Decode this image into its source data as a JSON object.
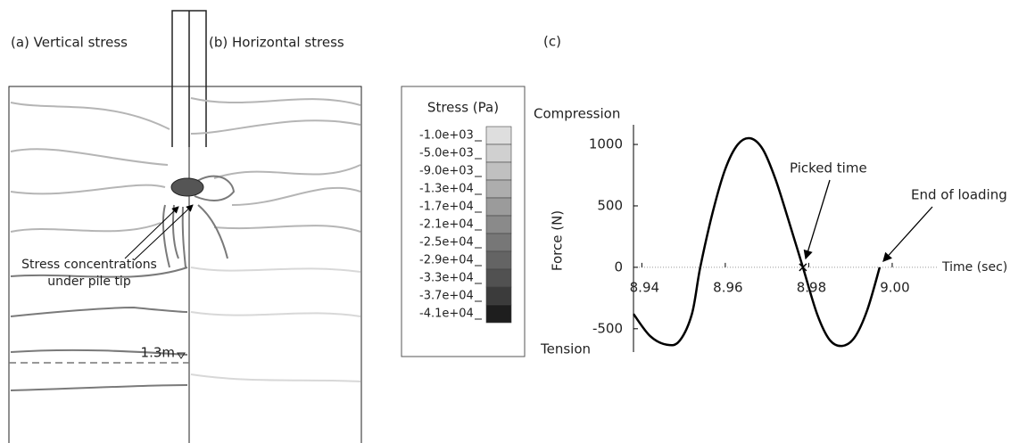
{
  "panels": {
    "a": "(a) Vertical stress",
    "b": "(b) Horizontal stress",
    "c": "(c)"
  },
  "annotation_left": [
    "Stress concentrations",
    "under pile tip"
  ],
  "depth_label": "1.3m",
  "legend": {
    "title": "Stress (Pa)",
    "entries": [
      {
        "label": "-1.0e+03",
        "color": "#dedede"
      },
      {
        "label": "-5.0e+03",
        "color": "#d0d0d0"
      },
      {
        "label": "-9.0e+03",
        "color": "#c0c0c0"
      },
      {
        "label": "-1.3e+04",
        "color": "#adadad"
      },
      {
        "label": "-1.7e+04",
        "color": "#9b9b9b"
      },
      {
        "label": "-2.1e+04",
        "color": "#8a8a8a"
      },
      {
        "label": "-2.5e+04",
        "color": "#777777"
      },
      {
        "label": "-2.9e+04",
        "color": "#646464"
      },
      {
        "label": "-3.3e+04",
        "color": "#515151"
      },
      {
        "label": "-3.7e+04",
        "color": "#3b3b3b"
      },
      {
        "label": "-4.1e+04",
        "color": "#1e1e1e"
      }
    ]
  },
  "chart_data": {
    "type": "line",
    "xlabel": "Time (sec)",
    "ylabel": "Force (N)",
    "top_label": "Compression",
    "bottom_label": "Tension",
    "annotations": [
      "Picked time",
      "End of loading"
    ],
    "x": [
      8.938,
      8.942,
      8.946,
      8.949,
      8.952,
      8.954,
      8.957,
      8.96,
      8.963,
      8.966,
      8.969,
      8.972,
      8.975,
      8.9786,
      8.982,
      8.985,
      8.988,
      8.991,
      8.994,
      8.997
    ],
    "series": [
      {
        "name": "Force",
        "color": "#000000",
        "values": [
          -380,
          -560,
          -630,
          -600,
          -380,
          0,
          450,
          800,
          1000,
          1050,
          960,
          720,
          400,
          0,
          -380,
          -590,
          -640,
          -570,
          -350,
          0
        ]
      }
    ],
    "xlim": [
      8.938,
      9.0107
    ],
    "xticks": [
      8.94,
      8.96,
      8.98,
      {
        "value": 9,
        "label": "9.00"
      }
    ],
    "ylim": [
      -690,
      1160
    ],
    "yticks": [
      -500,
      0,
      500,
      1000
    ],
    "zero_line": true
  }
}
